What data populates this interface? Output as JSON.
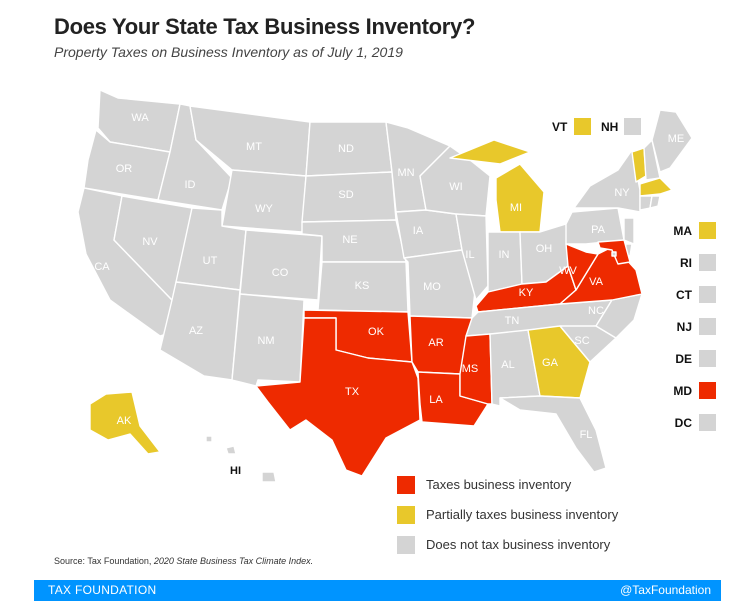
{
  "title": "Does Your State Tax Business Inventory?",
  "subtitle": "Property Taxes on Business Inventory as of July 1, 2019",
  "colors": {
    "full": "#ee2a00",
    "partial": "#e8c82b",
    "none": "#d4d4d4",
    "footer": "#0094ff"
  },
  "legend": [
    {
      "key": "full",
      "label": "Taxes business inventory"
    },
    {
      "key": "partial",
      "label": "Partially taxes business inventory"
    },
    {
      "key": "none",
      "label": "Does not tax business inventory"
    }
  ],
  "states": {
    "WA": "none",
    "OR": "none",
    "CA": "none",
    "ID": "none",
    "NV": "none",
    "MT": "none",
    "WY": "none",
    "UT": "none",
    "AZ": "none",
    "CO": "none",
    "NM": "none",
    "ND": "none",
    "SD": "none",
    "NE": "none",
    "KS": "none",
    "OK": "full",
    "TX": "full",
    "MN": "none",
    "IA": "none",
    "MO": "none",
    "AR": "full",
    "LA": "full",
    "WI": "none",
    "IL": "none",
    "MS": "full",
    "MI": "partial",
    "IN": "none",
    "OH": "none",
    "KY": "full",
    "TN": "none",
    "AL": "none",
    "GA": "partial",
    "FL": "none",
    "SC": "none",
    "NC": "none",
    "VA": "full",
    "WV": "full",
    "PA": "none",
    "NY": "none",
    "ME": "none",
    "VT": "partial",
    "NH": "none",
    "MA": "partial",
    "RI": "none",
    "CT": "none",
    "NJ": "none",
    "DE": "none",
    "MD": "full",
    "DC": "none",
    "AK": "partial",
    "HI": "none"
  },
  "northeast_labels": [
    {
      "abbr": "VT",
      "status": "partial"
    },
    {
      "abbr": "NH",
      "status": "none"
    }
  ],
  "side_labels": [
    {
      "abbr": "MA",
      "status": "partial"
    },
    {
      "abbr": "RI",
      "status": "none"
    },
    {
      "abbr": "CT",
      "status": "none"
    },
    {
      "abbr": "NJ",
      "status": "none"
    },
    {
      "abbr": "DE",
      "status": "none"
    },
    {
      "abbr": "MD",
      "status": "full"
    },
    {
      "abbr": "DC",
      "status": "none"
    }
  ],
  "source": {
    "prefix": "Source: Tax Foundation, ",
    "publication": "2020 State Business Tax Climate Index."
  },
  "footer": {
    "org": "TAX FOUNDATION",
    "handle": "@TaxFoundation"
  }
}
